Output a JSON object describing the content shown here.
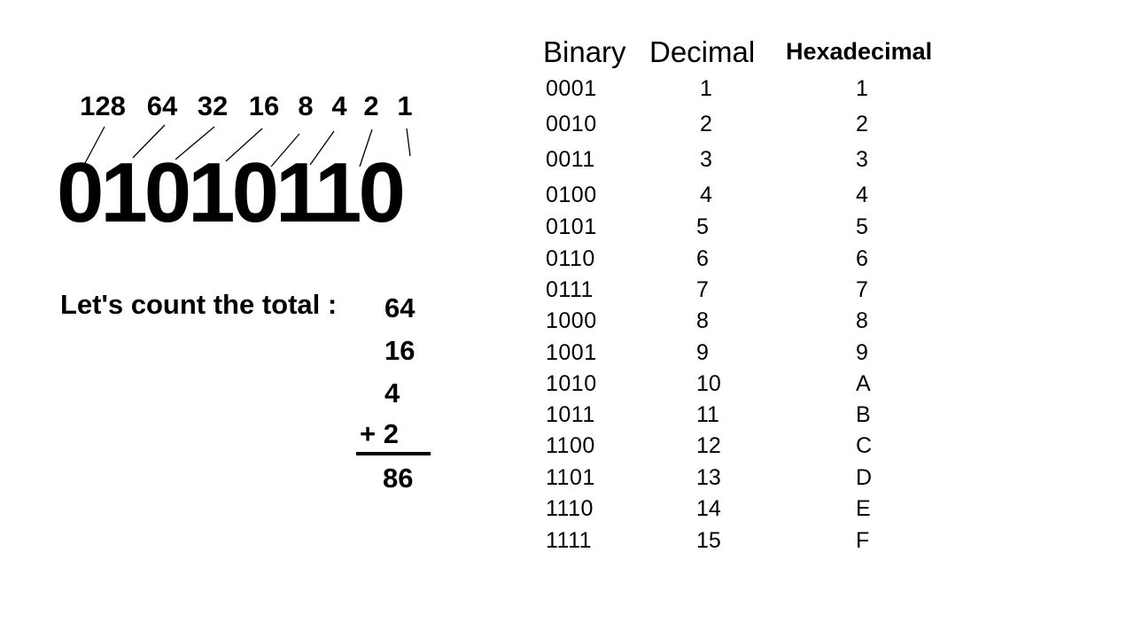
{
  "place_values": [
    "128",
    "64",
    "32",
    "16",
    "8",
    "4",
    "2",
    "1"
  ],
  "binary_number": "01010110",
  "count_label": "Let's count the total :",
  "addends": [
    "64",
    "16",
    "4"
  ],
  "last_addend": "+ 2",
  "total": "86",
  "table": {
    "headers": {
      "binary": "Binary",
      "decimal": "Decimal",
      "hexadecimal": "Hexadecimal"
    },
    "rows": [
      {
        "binary": "0001",
        "decimal": "1",
        "hex": "1"
      },
      {
        "binary": "0010",
        "decimal": "2",
        "hex": "2"
      },
      {
        "binary": "0011",
        "decimal": "3",
        "hex": "3"
      },
      {
        "binary": "0100",
        "decimal": "4",
        "hex": "4"
      },
      {
        "binary": "0101",
        "decimal": "5",
        "hex": "5"
      },
      {
        "binary": "0110",
        "decimal": "6",
        "hex": "6"
      },
      {
        "binary": "0111",
        "decimal": "7",
        "hex": "7"
      },
      {
        "binary": "1000",
        "decimal": "8",
        "hex": "8"
      },
      {
        "binary": "1001",
        "decimal": "9",
        "hex": "9"
      },
      {
        "binary": "1010",
        "decimal": "10",
        "hex": "A"
      },
      {
        "binary": "1011",
        "decimal": "11",
        "hex": "B"
      },
      {
        "binary": "1100",
        "decimal": "12",
        "hex": "C"
      },
      {
        "binary": "1101",
        "decimal": "13",
        "hex": "D"
      },
      {
        "binary": "1110",
        "decimal": "14",
        "hex": "E"
      },
      {
        "binary": "1111",
        "decimal": "15",
        "hex": "F"
      }
    ]
  }
}
